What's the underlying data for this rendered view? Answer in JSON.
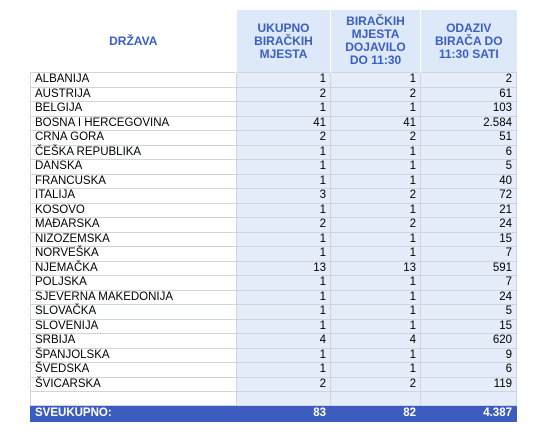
{
  "table": {
    "header": [
      "DRŽAVA",
      "UKUPNO\nBIRAČKIH\nMJESTA",
      "BIRAČKIH\nMJESTA\nDOJAVILO\nDO 11:30",
      "ODAZIV\nBIRAČA DO\n11:30 SATI"
    ],
    "rows": [
      [
        "ALBANIJA",
        "1",
        "1",
        "2"
      ],
      [
        "AUSTRIJA",
        "2",
        "2",
        "61"
      ],
      [
        "BELGIJA",
        "1",
        "1",
        "103"
      ],
      [
        "BOSNA I HERCEGOVINA",
        "41",
        "41",
        "2.584"
      ],
      [
        "CRNA GORA",
        "2",
        "2",
        "51"
      ],
      [
        "ČEŠKA REPUBLIKA",
        "1",
        "1",
        "6"
      ],
      [
        "DANSKA",
        "1",
        "1",
        "5"
      ],
      [
        "FRANCUSKA",
        "1",
        "1",
        "40"
      ],
      [
        "ITALIJA",
        "3",
        "2",
        "72"
      ],
      [
        "KOSOVO",
        "1",
        "1",
        "21"
      ],
      [
        "MAĐARSKA",
        "2",
        "2",
        "24"
      ],
      [
        "NIZOZEMSKA",
        "1",
        "1",
        "15"
      ],
      [
        "NORVEŠKA",
        "1",
        "1",
        "7"
      ],
      [
        "NJEMAČKA",
        "13",
        "13",
        "591"
      ],
      [
        "POLJSKA",
        "1",
        "1",
        "7"
      ],
      [
        "SJEVERNA MAKEDONIJA",
        "1",
        "1",
        "24"
      ],
      [
        "SLOVAČKA",
        "1",
        "1",
        "5"
      ],
      [
        "SLOVENIJA",
        "1",
        "1",
        "15"
      ],
      [
        "SRBIJA",
        "4",
        "4",
        "620"
      ],
      [
        "ŠPANJOLSKA",
        "1",
        "1",
        "9"
      ],
      [
        "ŠVEDSKA",
        "1",
        "1",
        "6"
      ],
      [
        "ŠVICARSKA",
        "2",
        "2",
        "119"
      ]
    ],
    "total": [
      "SVEUKUPNO:",
      "83",
      "82",
      "4.387"
    ]
  }
}
